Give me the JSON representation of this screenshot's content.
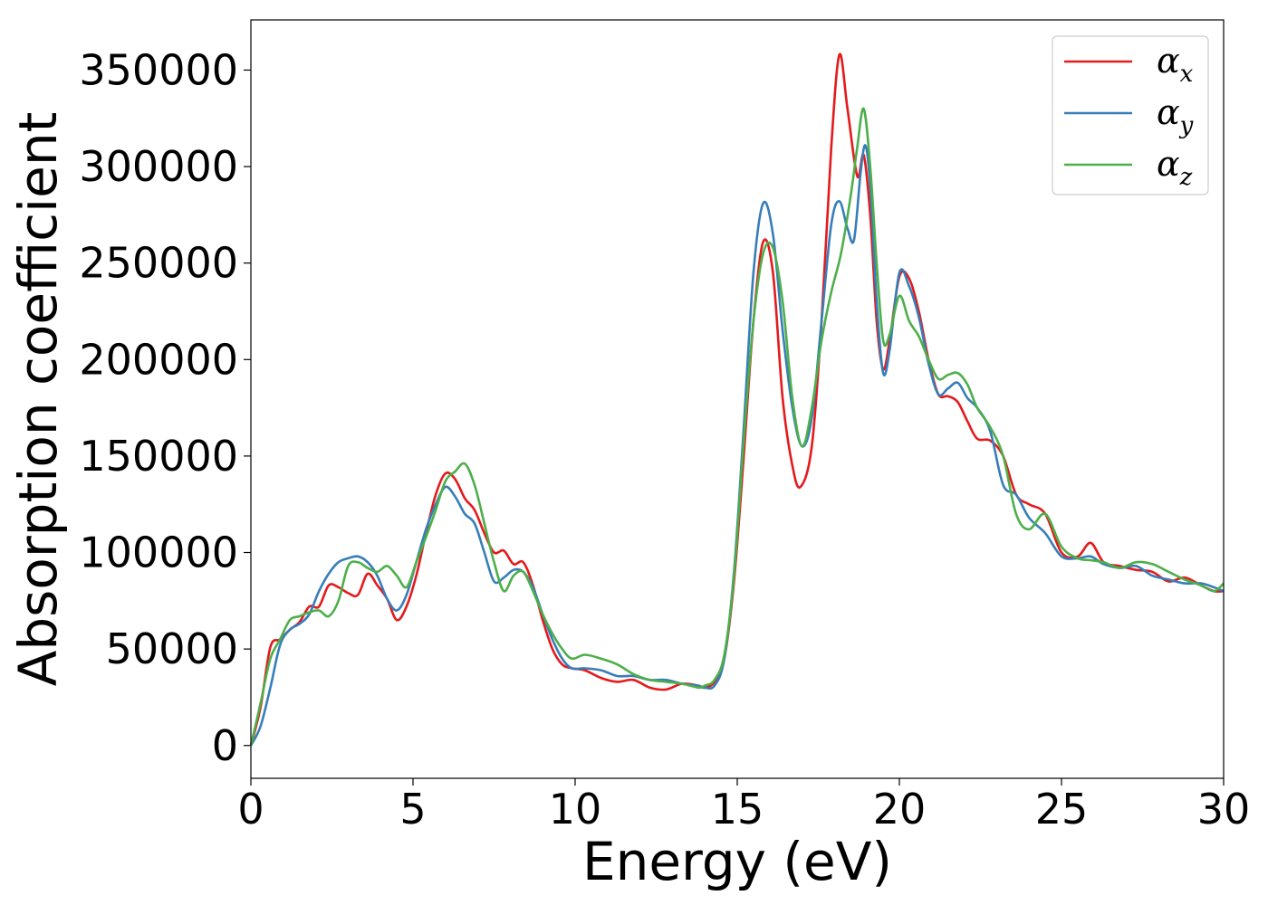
{
  "chart_data": {
    "type": "line",
    "xlabel": "Energy (eV)",
    "ylabel": "Absorption coefficient",
    "xlim": [
      0,
      30
    ],
    "ylim": [
      -17000,
      376000
    ],
    "xticks": [
      0,
      5,
      10,
      15,
      20,
      25,
      30
    ],
    "xtick_labels": [
      "0",
      "5",
      "10",
      "15",
      "20",
      "25",
      "30"
    ],
    "yticks": [
      0,
      50000,
      100000,
      150000,
      200000,
      250000,
      300000,
      350000
    ],
    "ytick_labels": [
      "0",
      "50000",
      "100000",
      "150000",
      "200000",
      "250000",
      "300000",
      "350000"
    ],
    "grid": false,
    "legend_position": "top-right",
    "series": [
      {
        "name": "α",
        "subscript": "x",
        "color": "#e41a1c",
        "x": [
          0,
          0.3,
          0.6,
          0.9,
          1.2,
          1.5,
          1.8,
          2.1,
          2.4,
          2.7,
          3.0,
          3.3,
          3.6,
          3.9,
          4.2,
          4.5,
          4.8,
          5.1,
          5.4,
          5.7,
          6.0,
          6.3,
          6.6,
          6.9,
          7.2,
          7.5,
          7.8,
          8.1,
          8.4,
          8.7,
          9.0,
          9.3,
          9.6,
          9.9,
          10.3,
          10.8,
          11.3,
          11.8,
          12.3,
          12.8,
          13.3,
          13.8,
          14.0,
          14.3,
          14.6,
          14.9,
          15.2,
          15.5,
          15.8,
          16.1,
          16.4,
          16.7,
          16.95,
          17.3,
          17.6,
          17.9,
          18.15,
          18.4,
          18.7,
          18.9,
          19.1,
          19.3,
          19.5,
          19.7,
          20.0,
          20.3,
          20.6,
          20.9,
          21.2,
          21.5,
          21.8,
          22.1,
          22.4,
          22.8,
          23.2,
          23.6,
          24.0,
          24.5,
          25.0,
          25.5,
          25.9,
          26.3,
          26.8,
          27.3,
          27.8,
          28.3,
          28.8,
          29.3,
          29.7,
          30.0
        ],
        "y": [
          0,
          20000,
          51000,
          55000,
          60000,
          64000,
          72000,
          72000,
          83000,
          82000,
          79000,
          78000,
          89000,
          83000,
          76000,
          65000,
          72000,
          88000,
          110000,
          130000,
          141000,
          138000,
          128000,
          122000,
          110000,
          100000,
          101000,
          94000,
          95000,
          83000,
          65000,
          50000,
          42000,
          40000,
          39000,
          35000,
          33000,
          34000,
          30000,
          29000,
          32000,
          31000,
          30000,
          33000,
          45000,
          85000,
          150000,
          220000,
          261000,
          245000,
          180000,
          145000,
          134000,
          155000,
          220000,
          310000,
          358000,
          330000,
          295000,
          306000,
          275000,
          220000,
          195000,
          210000,
          243000,
          242000,
          225000,
          200000,
          182000,
          181000,
          178000,
          168000,
          159000,
          158000,
          150000,
          130000,
          125000,
          120000,
          100000,
          98000,
          105000,
          95000,
          93000,
          91000,
          90000,
          85000,
          87000,
          83000,
          80000,
          80000
        ]
      },
      {
        "name": "α",
        "subscript": "y",
        "color": "#377eb8",
        "x": [
          0,
          0.3,
          0.6,
          0.9,
          1.2,
          1.5,
          1.8,
          2.1,
          2.4,
          2.7,
          3.0,
          3.3,
          3.6,
          3.9,
          4.2,
          4.5,
          4.8,
          5.1,
          5.4,
          5.7,
          6.0,
          6.3,
          6.6,
          6.9,
          7.2,
          7.5,
          7.8,
          8.1,
          8.4,
          8.7,
          9.0,
          9.3,
          9.6,
          9.9,
          10.3,
          10.8,
          11.3,
          11.8,
          12.3,
          12.8,
          13.3,
          13.8,
          14.0,
          14.3,
          14.6,
          14.9,
          15.2,
          15.5,
          15.8,
          16.1,
          16.4,
          16.7,
          17.0,
          17.3,
          17.6,
          17.9,
          18.15,
          18.4,
          18.6,
          18.8,
          18.95,
          19.1,
          19.3,
          19.5,
          19.7,
          20.0,
          20.3,
          20.6,
          20.9,
          21.2,
          21.5,
          21.8,
          22.1,
          22.4,
          22.8,
          23.2,
          23.6,
          24.0,
          24.5,
          25.0,
          25.5,
          25.9,
          26.3,
          26.8,
          27.3,
          27.8,
          28.3,
          28.8,
          29.3,
          29.7,
          30.0
        ],
        "y": [
          0,
          10000,
          30000,
          52000,
          60000,
          63000,
          68000,
          80000,
          89000,
          95000,
          97000,
          98000,
          95000,
          88000,
          76000,
          70000,
          78000,
          95000,
          112000,
          125000,
          134000,
          129000,
          120000,
          115000,
          100000,
          85000,
          87000,
          91000,
          90000,
          82000,
          68000,
          55000,
          45000,
          40000,
          40000,
          39000,
          36000,
          36000,
          34000,
          34000,
          32000,
          31000,
          30000,
          31000,
          45000,
          90000,
          165000,
          245000,
          281000,
          265000,
          215000,
          175000,
          155000,
          170000,
          220000,
          270000,
          282000,
          268000,
          262000,
          296000,
          311000,
          290000,
          230000,
          193000,
          205000,
          245000,
          238000,
          222000,
          198000,
          182000,
          185000,
          188000,
          180000,
          175000,
          163000,
          135000,
          130000,
          118000,
          110000,
          98000,
          97000,
          98000,
          94000,
          92000,
          93000,
          88000,
          86000,
          84000,
          84000,
          82000,
          80000
        ]
      },
      {
        "name": "α",
        "subscript": "z",
        "color": "#4daf4a",
        "x": [
          0,
          0.3,
          0.6,
          0.9,
          1.2,
          1.5,
          1.8,
          2.1,
          2.4,
          2.7,
          3.0,
          3.3,
          3.6,
          3.9,
          4.2,
          4.5,
          4.8,
          5.1,
          5.4,
          5.7,
          6.0,
          6.3,
          6.6,
          6.9,
          7.2,
          7.5,
          7.8,
          8.1,
          8.4,
          8.7,
          9.0,
          9.3,
          9.6,
          9.9,
          10.3,
          10.8,
          11.3,
          11.8,
          12.3,
          12.8,
          13.3,
          13.8,
          14.0,
          14.3,
          14.6,
          14.9,
          15.2,
          15.5,
          15.8,
          16.1,
          16.4,
          16.7,
          17.0,
          17.3,
          17.6,
          17.9,
          18.2,
          18.5,
          18.7,
          18.9,
          19.1,
          19.3,
          19.5,
          19.7,
          20.0,
          20.3,
          20.6,
          20.9,
          21.2,
          21.5,
          21.8,
          22.1,
          22.4,
          22.8,
          23.2,
          23.6,
          24.0,
          24.5,
          25.0,
          25.5,
          25.9,
          26.3,
          26.8,
          27.3,
          27.8,
          28.3,
          28.8,
          29.3,
          29.7,
          30.0
        ],
        "y": [
          0,
          22000,
          45000,
          55000,
          65000,
          67000,
          69000,
          70000,
          67000,
          75000,
          93000,
          95000,
          92000,
          90000,
          93000,
          88000,
          82000,
          95000,
          108000,
          122000,
          137000,
          142000,
          146000,
          135000,
          115000,
          95000,
          80000,
          88000,
          90000,
          80000,
          68000,
          58000,
          50000,
          45000,
          47000,
          45000,
          42000,
          37000,
          34000,
          33000,
          32000,
          30000,
          31000,
          34000,
          47000,
          88000,
          158000,
          220000,
          255000,
          258000,
          230000,
          180000,
          155000,
          175000,
          210000,
          235000,
          255000,
          285000,
          310000,
          330000,
          300000,
          250000,
          210000,
          213000,
          233000,
          220000,
          212000,
          200000,
          190000,
          192000,
          193000,
          187000,
          175000,
          165000,
          150000,
          120000,
          112000,
          120000,
          103000,
          97000,
          96000,
          95000,
          92000,
          95000,
          94000,
          90000,
          86000,
          83000,
          80000,
          84000
        ]
      }
    ]
  }
}
